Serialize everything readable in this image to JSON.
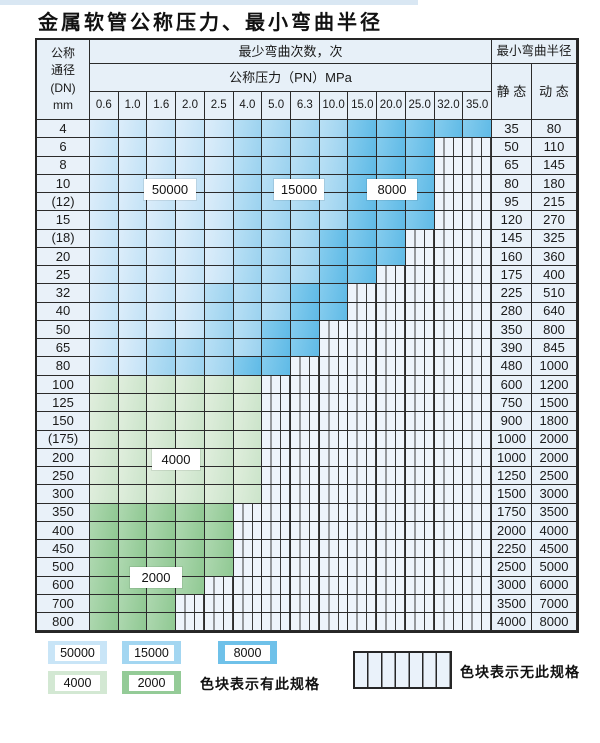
{
  "page": {
    "title": "金属软管公称压力、最小弯曲半径"
  },
  "table": {
    "dn_header_lines": [
      "公称",
      "通径",
      "(DN)",
      "mm"
    ],
    "bend_times_header": "最少弯曲次数，次",
    "pressure_header": "公称压力（PN）MPa",
    "radius_header": "最小弯曲半径",
    "static_header": "静 态",
    "dynamic_header": "动 态",
    "pressure_columns": [
      "0.6",
      "1.0",
      "1.6",
      "2.0",
      "2.5",
      "4.0",
      "5.0",
      "6.3",
      "10.0",
      "15.0",
      "20.0",
      "25.0",
      "32.0",
      "35.0"
    ],
    "cell_code_legend": {
      "L": "50000",
      "M": "15000",
      "D": "8000",
      "G": "4000",
      "E": "2000",
      "H": "no-spec-hatch"
    },
    "rows": [
      {
        "dn": "4",
        "cells": "LLLLLMMMMDDDDD",
        "static": "35",
        "dynamic": "80"
      },
      {
        "dn": "6",
        "cells": "LLLLLMMMMDDDHH",
        "static": "50",
        "dynamic": "110"
      },
      {
        "dn": "8",
        "cells": "LLLLLMMMMDDDHH",
        "static": "65",
        "dynamic": "145"
      },
      {
        "dn": "10",
        "cells": "LLLLLMMMMDDDHH",
        "static": "80",
        "dynamic": "180"
      },
      {
        "dn": "(12)",
        "cells": "LLLLLMMMMDDDHH",
        "static": "95",
        "dynamic": "215"
      },
      {
        "dn": "15",
        "cells": "LLLLLMMMMDDDHH",
        "static": "120",
        "dynamic": "270"
      },
      {
        "dn": "(18)",
        "cells": "LLLLLMMMDDDHHH",
        "static": "145",
        "dynamic": "325"
      },
      {
        "dn": "20",
        "cells": "LLLLLMMMDDDHHH",
        "static": "160",
        "dynamic": "360"
      },
      {
        "dn": "25",
        "cells": "LLLLLMMMDDHHHH",
        "static": "175",
        "dynamic": "400"
      },
      {
        "dn": "32",
        "cells": "LLLLMMMDDHHHHH",
        "static": "225",
        "dynamic": "510"
      },
      {
        "dn": "40",
        "cells": "LLLLMMMDDHHHHH",
        "static": "280",
        "dynamic": "640"
      },
      {
        "dn": "50",
        "cells": "LLLLMMDDHHHHHH",
        "static": "350",
        "dynamic": "800"
      },
      {
        "dn": "65",
        "cells": "LLMMMMDDHHHHHH",
        "static": "390",
        "dynamic": "845"
      },
      {
        "dn": "80",
        "cells": "LLMMMDDHHHHHHH",
        "static": "480",
        "dynamic": "1000"
      },
      {
        "dn": "100",
        "cells": "GGGGGGHHHHHHHH",
        "static": "600",
        "dynamic": "1200"
      },
      {
        "dn": "125",
        "cells": "GGGGGGHHHHHHHH",
        "static": "750",
        "dynamic": "1500"
      },
      {
        "dn": "150",
        "cells": "GGGGGGHHHHHHHH",
        "static": "900",
        "dynamic": "1800"
      },
      {
        "dn": "(175)",
        "cells": "GGGGGGHHHHHHHH",
        "static": "1000",
        "dynamic": "2000"
      },
      {
        "dn": "200",
        "cells": "GGGGGGHHHHHHHH",
        "static": "1000",
        "dynamic": "2000"
      },
      {
        "dn": "250",
        "cells": "GGGGGGHHHHHHHH",
        "static": "1250",
        "dynamic": "2500"
      },
      {
        "dn": "300",
        "cells": "GGGGGGHHHHHHHH",
        "static": "1500",
        "dynamic": "3000"
      },
      {
        "dn": "350",
        "cells": "EEEEEHHHHHHHHH",
        "static": "1750",
        "dynamic": "3500"
      },
      {
        "dn": "400",
        "cells": "EEEEEHHHHHHHHH",
        "static": "2000",
        "dynamic": "4000"
      },
      {
        "dn": "450",
        "cells": "EEEEEHHHHHHHHH",
        "static": "2250",
        "dynamic": "4500"
      },
      {
        "dn": "500",
        "cells": "EEEEEHHHHHHHHH",
        "static": "2500",
        "dynamic": "5000"
      },
      {
        "dn": "600",
        "cells": "EEEEHHHHHHHHHH",
        "static": "3000",
        "dynamic": "6000"
      },
      {
        "dn": "700",
        "cells": "EEEHHHHHHHHHHH",
        "static": "3500",
        "dynamic": "7000"
      },
      {
        "dn": "800",
        "cells": "EEEHHHHHHHHHHH",
        "static": "4000",
        "dynamic": "8000"
      }
    ],
    "float_labels": {
      "v50000": "50000",
      "v15000": "15000",
      "v8000": "8000",
      "v4000": "4000",
      "v2000": "2000"
    }
  },
  "legend": {
    "items": [
      {
        "value": "50000",
        "color": "#c9e5f7"
      },
      {
        "value": "15000",
        "color": "#a3d6f1"
      },
      {
        "value": "8000",
        "color": "#6fc1e9"
      },
      {
        "value": "4000",
        "color": "#d3e8d3"
      },
      {
        "value": "2000",
        "color": "#94cb97"
      }
    ],
    "has_spec_note": "色块表示有此规格",
    "no_spec_note": "色块表示无此规格"
  },
  "colors": {
    "band_50000": "#cde7f8",
    "band_15000": "#a9d9f2",
    "band_8000": "#72c3ea",
    "band_4000": "#d5e9d5",
    "band_2000": "#9ccf9e",
    "hatch_fill": "#eef4fb",
    "header_fill": "#e8f1f9",
    "border": "#262626",
    "top_strip": "#d9e7f3"
  }
}
